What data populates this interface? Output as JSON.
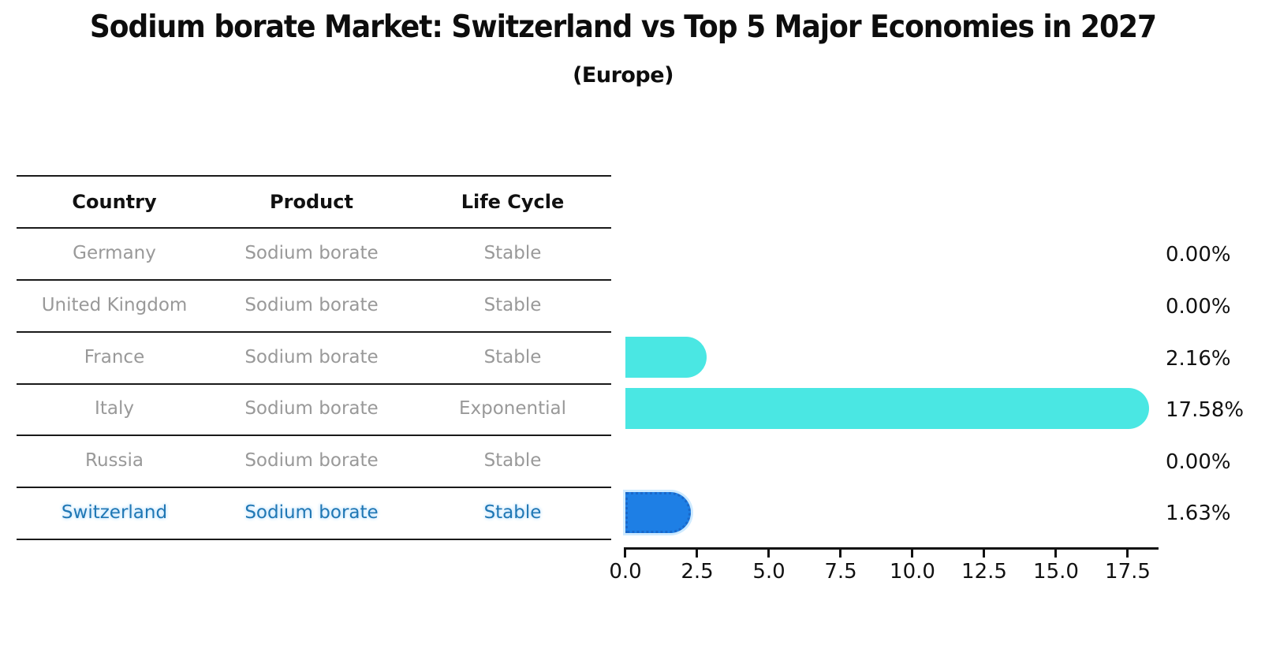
{
  "header": {
    "title": "Sodium borate Market: Switzerland vs Top 5 Major Economies in 2027",
    "subtitle": "(Europe)"
  },
  "table": {
    "columns": [
      "Country",
      "Product",
      "Life Cycle"
    ],
    "rows": [
      {
        "country": "Germany",
        "product": "Sodium borate",
        "life_cycle": "Stable"
      },
      {
        "country": "United Kingdom",
        "product": "Sodium borate",
        "life_cycle": "Stable"
      },
      {
        "country": "France",
        "product": "Sodium borate",
        "life_cycle": "Stable"
      },
      {
        "country": "Italy",
        "product": "Sodium borate",
        "life_cycle": "Exponential"
      },
      {
        "country": "Russia",
        "product": "Sodium borate",
        "life_cycle": "Stable"
      },
      {
        "country": "Switzerland",
        "product": "Sodium borate",
        "life_cycle": "Stable"
      }
    ]
  },
  "chart_data": {
    "type": "bar",
    "orientation": "horizontal",
    "title": "Sodium borate Market: Switzerland vs Top 5 Major Economies in 2027 (Europe)",
    "categories": [
      "Germany",
      "United Kingdom",
      "France",
      "Italy",
      "Russia",
      "Switzerland"
    ],
    "values": [
      0.0,
      0.0,
      2.16,
      17.58,
      0.0,
      1.63
    ],
    "value_labels": [
      "0.00%",
      "0.00%",
      "2.16%",
      "17.58%",
      "0.00%",
      "1.63%"
    ],
    "x_ticks": [
      "0.0",
      "2.5",
      "5.0",
      "7.5",
      "10.0",
      "12.5",
      "15.0",
      "17.5"
    ],
    "xlim": [
      0,
      18.55
    ],
    "grid": false,
    "legend": false,
    "highlight_index": 5,
    "bar_color": "#4ae7e3",
    "highlight_bar_color": "#1e7fe5",
    "highlight_text_color": "#1f77b4",
    "axis_color": "#111111",
    "table_text_color": "#999999"
  }
}
